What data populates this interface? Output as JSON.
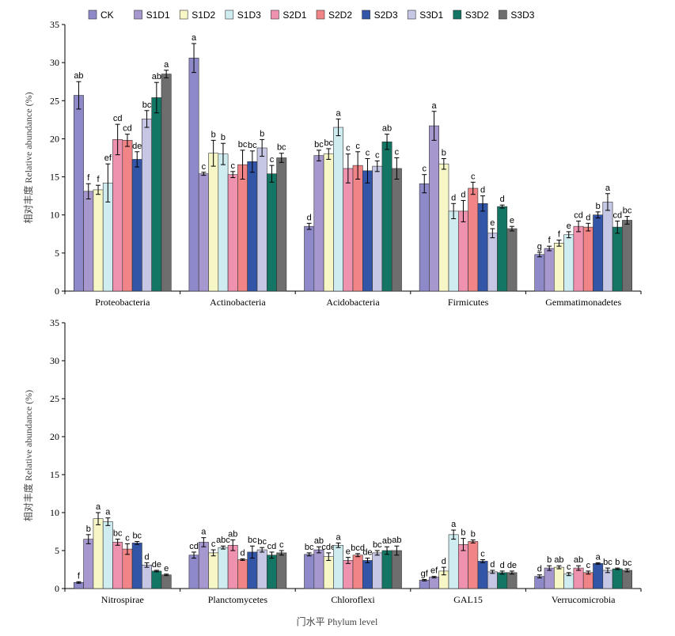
{
  "chart_data": [
    {
      "type": "bar",
      "ylabel": "相对丰度 Relative abundance (%)",
      "ylim": [
        0,
        35
      ],
      "yticks": [
        0,
        5,
        10,
        15,
        20,
        25,
        30,
        35
      ],
      "categories": [
        "Proteobacteria",
        "Actinobacteria",
        "Acidobacteria",
        "Firmicutes",
        "Gemmatimonadetes"
      ],
      "series": [
        {
          "name": "CK",
          "values": [
            25.7,
            30.6,
            8.5,
            14.1,
            4.8
          ],
          "errors": [
            1.8,
            1.9,
            0.4,
            1.2,
            0.3
          ],
          "letters": [
            "ab",
            "a",
            "d",
            "c",
            "g"
          ]
        },
        {
          "name": "S1D1",
          "values": [
            13.1,
            15.4,
            17.8,
            21.7,
            5.6
          ],
          "errors": [
            1.0,
            0.2,
            0.7,
            1.9,
            0.3
          ],
          "letters": [
            "f",
            "c",
            "bc",
            "a",
            "f"
          ]
        },
        {
          "name": "S1D2",
          "values": [
            13.3,
            18.1,
            18.0,
            16.7,
            6.3
          ],
          "errors": [
            0.6,
            1.7,
            0.7,
            0.7,
            0.4
          ],
          "letters": [
            "f",
            "b",
            "bc",
            "b",
            "f"
          ]
        },
        {
          "name": "S1D3",
          "values": [
            14.2,
            18.0,
            21.5,
            10.5,
            7.4
          ],
          "errors": [
            2.5,
            1.4,
            1.1,
            1.0,
            0.4
          ],
          "letters": [
            "ef",
            "b",
            "a",
            "d",
            "e"
          ]
        },
        {
          "name": "S2D1",
          "values": [
            19.9,
            15.3,
            16.1,
            10.5,
            8.5
          ],
          "errors": [
            2.0,
            0.4,
            1.9,
            1.4,
            0.7
          ],
          "letters": [
            "cd",
            "c",
            "c",
            "d",
            "cd"
          ]
        },
        {
          "name": "S2D2",
          "values": [
            19.8,
            16.6,
            16.5,
            13.5,
            8.4
          ],
          "errors": [
            0.8,
            1.9,
            1.8,
            0.8,
            0.5
          ],
          "letters": [
            "cd",
            "bc",
            "c",
            "c",
            "d"
          ]
        },
        {
          "name": "S2D3",
          "values": [
            17.3,
            17.0,
            15.8,
            11.5,
            10.0
          ],
          "errors": [
            1.0,
            1.4,
            1.6,
            1.0,
            0.4
          ],
          "letters": [
            "de",
            "bc",
            "c",
            "d",
            "b"
          ]
        },
        {
          "name": "S3D1",
          "values": [
            22.6,
            18.8,
            16.4,
            7.6,
            11.7
          ],
          "errors": [
            1.1,
            1.1,
            0.7,
            0.6,
            1.1
          ],
          "letters": [
            "bc",
            "b",
            "c",
            "e",
            "a"
          ]
        },
        {
          "name": "S3D2",
          "values": [
            25.4,
            15.4,
            19.6,
            11.1,
            8.4
          ],
          "errors": [
            2.0,
            1.1,
            1.0,
            0.2,
            0.8
          ],
          "letters": [
            "ab",
            "c",
            "ab",
            "d",
            "cd"
          ]
        },
        {
          "name": "S3D3",
          "values": [
            28.5,
            17.5,
            16.1,
            8.2,
            9.3
          ],
          "errors": [
            0.5,
            0.6,
            1.4,
            0.3,
            0.5
          ],
          "letters": [
            "a",
            "bc",
            "c",
            "e",
            "bc"
          ]
        }
      ],
      "colors": [
        "#8e89c9",
        "#a697cf",
        "#f6f6c6",
        "#cfecf0",
        "#ef92b0",
        "#f08486",
        "#3355a8",
        "#c5c7e4",
        "#137563",
        "#6e6e6e"
      ],
      "legend": "top",
      "grid": false
    },
    {
      "type": "bar",
      "xlabel": "门水平 Phylum level",
      "ylabel": "相对丰度 Relative abundance (%)",
      "ylim": [
        0,
        35
      ],
      "yticks": [
        0,
        5,
        10,
        15,
        20,
        25,
        30,
        35
      ],
      "categories": [
        "Nitrospirae",
        "Planctomycetes",
        "Chloroflexi",
        "GAL15",
        "Verrucomicrobia"
      ],
      "series": [
        {
          "name": "CK",
          "values": [
            0.8,
            4.4,
            4.5,
            1.1,
            1.6
          ],
          "errors": [
            0.1,
            0.4,
            0.2,
            0.1,
            0.2
          ],
          "letters": [
            "f",
            "cd",
            "bc",
            "gf",
            "d"
          ]
        },
        {
          "name": "S1D1",
          "values": [
            6.5,
            6.1,
            5.1,
            1.5,
            2.7
          ],
          "errors": [
            0.6,
            0.6,
            0.4,
            0.1,
            0.3
          ],
          "letters": [
            "b",
            "a",
            "ab",
            "ef",
            "b"
          ]
        },
        {
          "name": "S1D2",
          "values": [
            9.2,
            4.7,
            4.2,
            2.3,
            2.8
          ],
          "errors": [
            0.8,
            0.4,
            0.5,
            0.5,
            0.2
          ],
          "letters": [
            "a",
            "c",
            "cde",
            "d",
            "ab"
          ]
        },
        {
          "name": "S1D3",
          "values": [
            8.8,
            5.4,
            5.7,
            7.1,
            1.9
          ],
          "errors": [
            0.5,
            0.2,
            0.3,
            0.6,
            0.2
          ],
          "letters": [
            "a",
            "abc",
            "a",
            "a",
            "c"
          ]
        },
        {
          "name": "S2D1",
          "values": [
            6.1,
            5.7,
            3.7,
            5.8,
            2.7
          ],
          "errors": [
            0.4,
            0.7,
            0.4,
            0.8,
            0.3
          ],
          "letters": [
            "bc",
            "ab",
            "e",
            "b",
            "ab"
          ]
        },
        {
          "name": "S2D2",
          "values": [
            5.2,
            3.8,
            4.4,
            6.2,
            2.1
          ],
          "errors": [
            0.7,
            0.1,
            0.2,
            0.2,
            0.2
          ],
          "letters": [
            "c",
            "d",
            "bcd",
            "b",
            "c"
          ]
        },
        {
          "name": "S2D3",
          "values": [
            6.0,
            4.8,
            3.7,
            3.6,
            3.3
          ],
          "errors": [
            0.2,
            0.8,
            0.3,
            0.2,
            0.1
          ],
          "letters": [
            "bc",
            "bc",
            "de",
            "c",
            "a"
          ]
        },
        {
          "name": "S3D1",
          "values": [
            3.1,
            5.1,
            4.7,
            2.2,
            2.4
          ],
          "errors": [
            0.3,
            0.3,
            0.3,
            0.2,
            0.3
          ],
          "letters": [
            "d",
            "bc",
            "bc",
            "d",
            "bc"
          ]
        },
        {
          "name": "S3D2",
          "values": [
            2.3,
            4.4,
            5.0,
            2.1,
            2.6
          ],
          "errors": [
            0.1,
            0.4,
            0.5,
            0.2,
            0.1
          ],
          "letters": [
            "de",
            "cd",
            "ab",
            "d",
            "b"
          ]
        },
        {
          "name": "S3D3",
          "values": [
            1.8,
            4.7,
            5.0,
            2.1,
            2.4
          ],
          "errors": [
            0.1,
            0.3,
            0.6,
            0.2,
            0.2
          ],
          "letters": [
            "e",
            "c",
            "ab",
            "de",
            "bc"
          ]
        }
      ],
      "colors": [
        "#8e89c9",
        "#a697cf",
        "#f6f6c6",
        "#cfecf0",
        "#ef92b0",
        "#f08486",
        "#3355a8",
        "#c5c7e4",
        "#137563",
        "#6e6e6e"
      ],
      "legend": "none",
      "grid": false
    }
  ]
}
